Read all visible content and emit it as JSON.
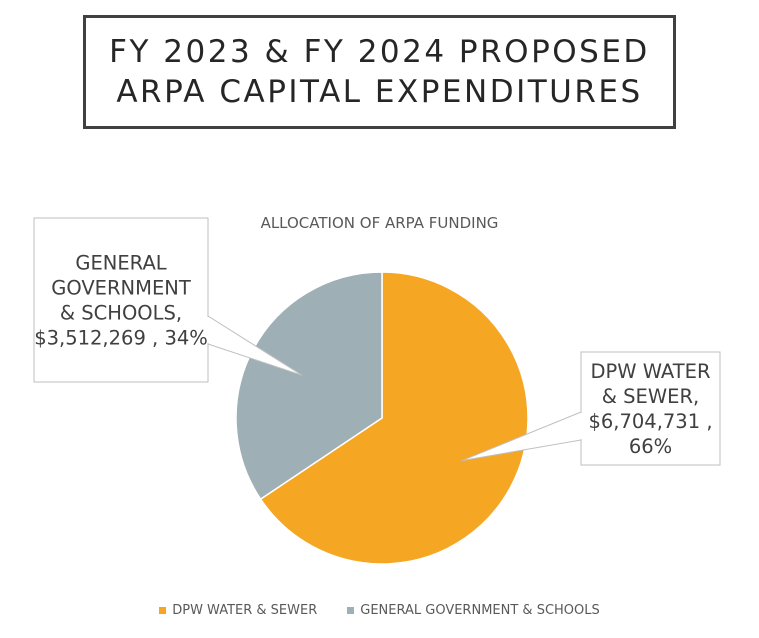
{
  "header": {
    "title_line1": "FY 2023 & FY 2024 PROPOSED",
    "title_line2": "ARPA CAPITAL EXPENDITURES"
  },
  "chart_data": {
    "type": "pie",
    "title": "ALLOCATION OF ARPA FUNDING",
    "categories": [
      "DPW WATER & SEWER",
      "GENERAL GOVERNMENT & SCHOOLS"
    ],
    "values": [
      6704731,
      3512269
    ],
    "percents": [
      66,
      34
    ],
    "colors": [
      "#F5A623",
      "#9EAFB5"
    ],
    "data_labels": [
      [
        "DPW WATER",
        "& SEWER,",
        "$6,704,731 ,",
        "66%"
      ],
      [
        "GENERAL",
        "GOVERNMENT",
        "& SCHOOLS,",
        "$3,512,269 , 34%"
      ]
    ],
    "legend_position": "bottom"
  }
}
